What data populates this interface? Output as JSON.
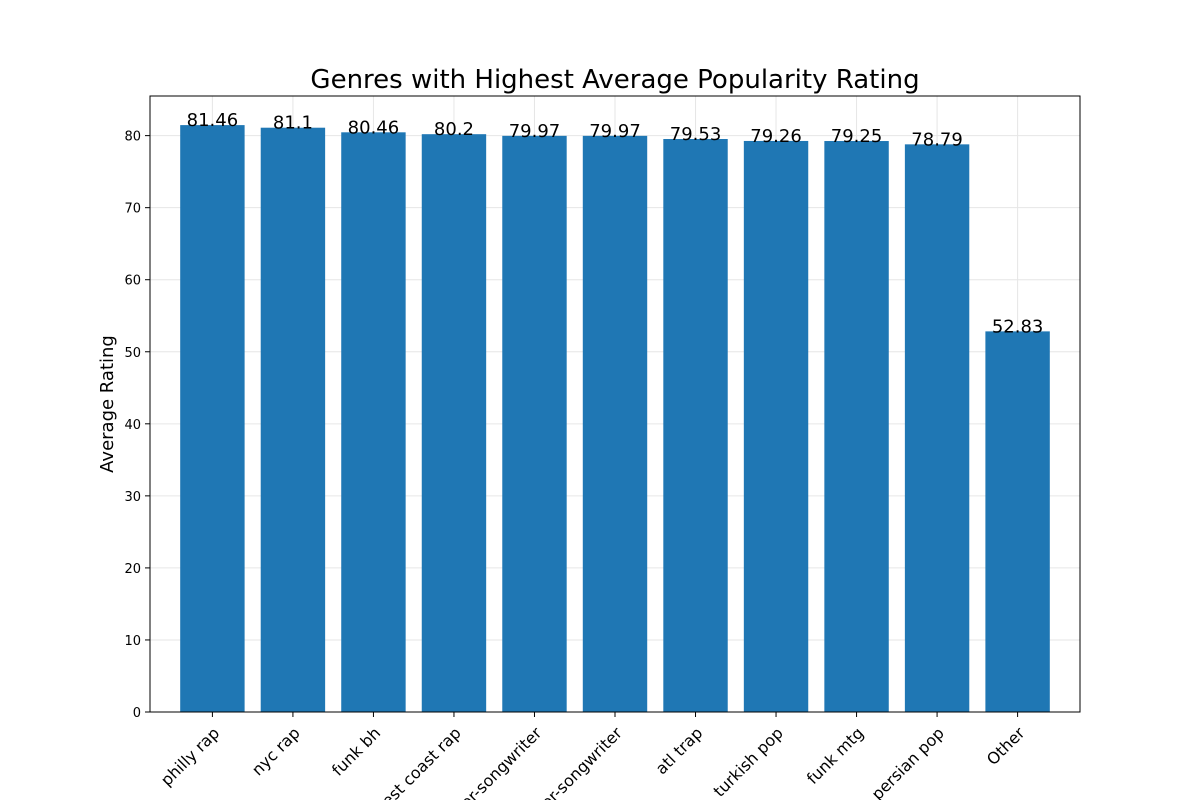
{
  "chart_data": {
    "type": "bar",
    "title": "Genres with Highest Average Popularity Rating",
    "xlabel": "",
    "ylabel": "Average Rating",
    "categories": [
      "philly rap",
      "nyc rap",
      "funk bh",
      "west coast rap",
      "singer-songwriter",
      "singer-songwriter",
      "atl trap",
      "turkish pop",
      "funk mtg",
      "persian pop",
      "Other"
    ],
    "values": [
      81.46,
      81.1,
      80.46,
      80.2,
      79.97,
      79.97,
      79.53,
      79.26,
      79.25,
      78.79,
      52.83
    ],
    "data_labels": [
      "81.46",
      "81.1",
      "80.46",
      "80.2",
      "79.97",
      "79.97",
      "79.53",
      "79.26",
      "79.25",
      "78.79",
      "52.83"
    ],
    "ylim": [
      0,
      85.5
    ],
    "yticks": [
      0,
      10,
      20,
      30,
      40,
      50,
      60,
      70,
      80
    ],
    "bar_color": "#1f77b4",
    "grid": true
  }
}
